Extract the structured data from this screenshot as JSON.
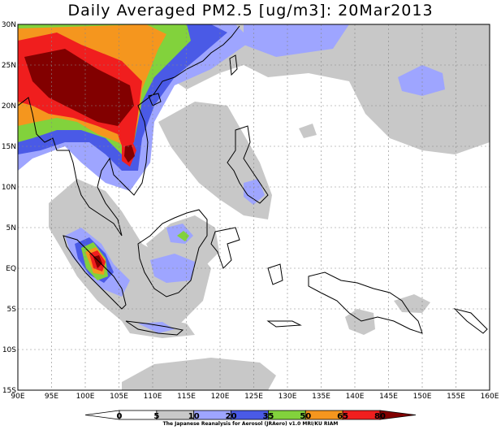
{
  "title": "Daily Averaged PM2.5 [ug/m3]: 20Mar2013",
  "map": {
    "lon_range": [
      90,
      160
    ],
    "lat_range": [
      -15,
      30
    ],
    "x_ticks": [
      "90E",
      "95E",
      "100E",
      "105E",
      "110E",
      "115E",
      "120E",
      "125E",
      "130E",
      "135E",
      "140E",
      "145E",
      "150E",
      "155E",
      "160E"
    ],
    "y_ticks": [
      "30N",
      "25N",
      "20N",
      "15N",
      "10N",
      "5N",
      "EQ",
      "5S",
      "10S",
      "15S"
    ]
  },
  "colorbar": {
    "labels": [
      "0",
      "5",
      "10",
      "20",
      "35",
      "50",
      "65",
      "80"
    ],
    "colors": [
      "#ffffff",
      "#ffffff",
      "#c8c8c8",
      "#9ea5ff",
      "#4a5ae6",
      "#82d23c",
      "#f5961e",
      "#f01e1e",
      "#820000"
    ]
  },
  "credit": "The Japanese Reanalysis for Aerosol (JRAero) v1.0 MRI/KU RIAM"
}
